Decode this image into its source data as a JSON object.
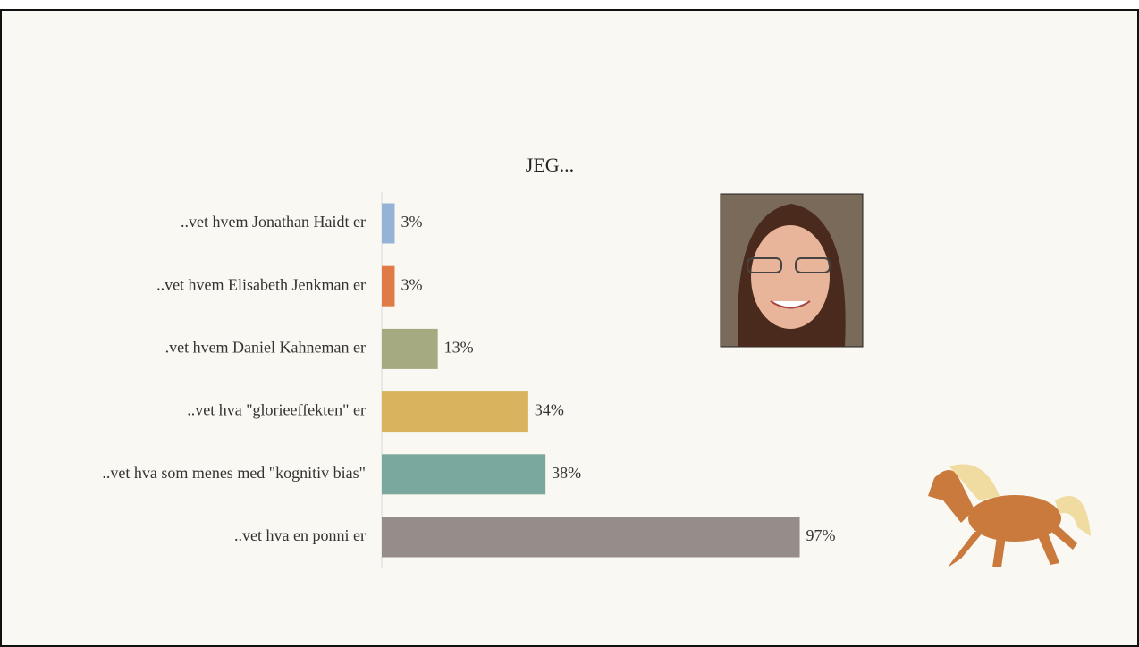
{
  "chart_data": {
    "type": "bar",
    "orientation": "horizontal",
    "title": "JEG...",
    "categories": [
      "..vet hvem Jonathan Haidt er",
      "..vet hvem Elisabeth Jenkman er",
      ".vet hvem Daniel Kahneman er",
      "..vet hva \"glorieeffekten\" er",
      "..vet hva som menes med \"kognitiv bias\"",
      "..vet hva en ponni er"
    ],
    "values": [
      3,
      3,
      13,
      34,
      38,
      97
    ],
    "value_labels": [
      "3%",
      "3%",
      "13%",
      "34%",
      "38%",
      "97%"
    ],
    "colors": [
      "#95b3d7",
      "#e07b45",
      "#a5aa80",
      "#d9b35e",
      "#7aa89e",
      "#968d8a"
    ],
    "xlim": [
      0,
      100
    ]
  }
}
